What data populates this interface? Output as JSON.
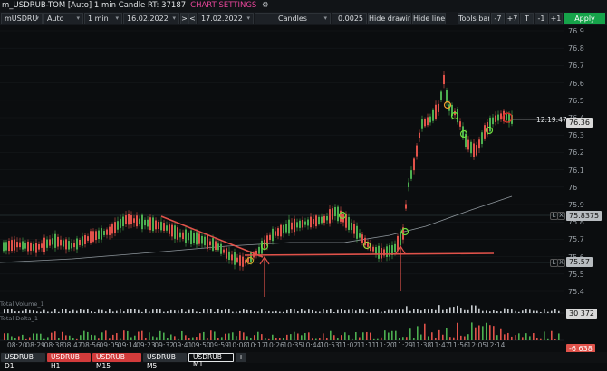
{
  "title": {
    "text": "m_USDRUB-TOM [Auto] 1 min Candle RT: 37187",
    "settings": "CHART SETTINGS",
    "gear": "gear-icon"
  },
  "toolbar": {
    "symbol": "mUSDRU",
    "mode": "Auto",
    "timeframe": "1 min",
    "date_from": "16.02.2022",
    "next": ">",
    "prev": "<",
    "date_to": "17.02.2022",
    "chart_type": "Candles",
    "step": "0.0025",
    "hide_drawing": "Hide drawing",
    "hide_lines": "Hide lines",
    "tools_bar": "Tools bar",
    "minus7": "-7",
    "plus7": "+7",
    "T": "T",
    "minus1": "-1",
    "plus1": "+1",
    "apply": "Apply"
  },
  "yaxis": {
    "ticks": [
      "76.9",
      "76.8",
      "76.7",
      "76.6",
      "76.5",
      "76.4",
      "76.3",
      "76.2",
      "76.1",
      "76",
      "75.9",
      "75.8",
      "75.7",
      "75.6",
      "75.5",
      "75.4"
    ],
    "price": "76.36",
    "level1": "75.8375",
    "level2": "75.57",
    "time": "12:19:47",
    "L": "L",
    "X": "X"
  },
  "volume": {
    "label": "Total Volume_1",
    "value": "30 372"
  },
  "delta": {
    "label": "Total Delta_1",
    "value": "-6 638"
  },
  "xaxis": [
    "08:20",
    "08:29",
    "08:38",
    "08:47",
    "08:56",
    "09:05",
    "09:14",
    "09:23",
    "09:32",
    "09:41",
    "09:50",
    "09:59",
    "10:08",
    "10:17",
    "10:26",
    "10:35",
    "10:44",
    "10:53",
    "11:02",
    "11:11",
    "11:20",
    "11:29",
    "11:38",
    "11:47",
    "11:56",
    "12:05",
    "12:14"
  ],
  "tabs": [
    "USDRUB D1",
    "USDRUB H1",
    "USDRUB M15",
    "USDRUB M5",
    "USDRUB M1",
    "+"
  ],
  "colors": {
    "up": "#4caf50",
    "down": "#e0524a",
    "accent": "#e9469b",
    "apply": "#16a34a",
    "price_badge": "#d9d9d9",
    "level_badge": "#b8bcc0"
  }
}
